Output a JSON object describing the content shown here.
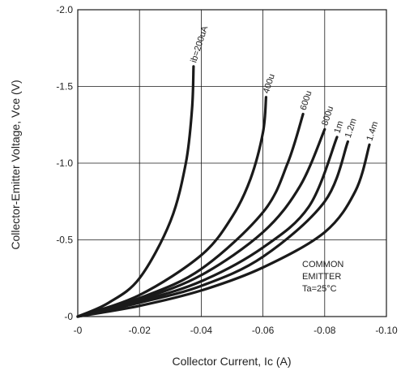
{
  "chart_data": {
    "type": "line",
    "title": "",
    "xlabel": "Collector Current, Ic (A)",
    "ylabel": "Collector-Emitter Voltage, Vce (V)",
    "xlim": [
      0,
      -0.1
    ],
    "ylim": [
      0,
      -2.0
    ],
    "x_tick_labels": [
      "-0",
      "-0.02",
      "-0.04",
      "-0.06",
      "-0.08",
      "-0.10"
    ],
    "y_tick_labels": [
      "-0",
      "-0.5",
      "-1.0",
      "-1.5",
      "-2.0"
    ],
    "grid": true,
    "annotation": [
      "COMMON",
      "EMITTER",
      "Ta=25°C"
    ],
    "colors": {
      "curve": "#1a1a1a",
      "grid": "#1a1a1a"
    },
    "series": [
      {
        "name": "ib=200uA",
        "x": [
          0,
          -0.01,
          -0.02,
          -0.03,
          -0.035,
          -0.037,
          -0.0375
        ],
        "y": [
          0,
          -0.09,
          -0.25,
          -0.62,
          -1.0,
          -1.35,
          -1.63
        ]
      },
      {
        "name": "400u",
        "x": [
          0,
          -0.02,
          -0.04,
          -0.05,
          -0.056,
          -0.06,
          -0.061
        ],
        "y": [
          0,
          -0.14,
          -0.4,
          -0.65,
          -0.9,
          -1.2,
          -1.43
        ]
      },
      {
        "name": "600u",
        "x": [
          0,
          -0.02,
          -0.04,
          -0.06,
          -0.068,
          -0.073
        ],
        "y": [
          0,
          -0.12,
          -0.31,
          -0.68,
          -1.0,
          -1.32
        ]
      },
      {
        "name": "800u",
        "x": [
          0,
          -0.02,
          -0.04,
          -0.06,
          -0.072,
          -0.08
        ],
        "y": [
          0,
          -0.11,
          -0.27,
          -0.55,
          -0.85,
          -1.22
        ]
      },
      {
        "name": "1m",
        "x": [
          0,
          -0.02,
          -0.04,
          -0.06,
          -0.075,
          -0.084
        ],
        "y": [
          0,
          -0.1,
          -0.23,
          -0.45,
          -0.72,
          -1.17
        ]
      },
      {
        "name": "1.2m",
        "x": [
          0,
          -0.02,
          -0.04,
          -0.06,
          -0.08,
          -0.0875
        ],
        "y": [
          0,
          -0.09,
          -0.2,
          -0.39,
          -0.75,
          -1.14
        ]
      },
      {
        "name": "1.4m",
        "x": [
          0,
          -0.02,
          -0.04,
          -0.06,
          -0.08,
          -0.09,
          -0.0945
        ],
        "y": [
          0,
          -0.07,
          -0.17,
          -0.32,
          -0.55,
          -0.82,
          -1.12
        ]
      }
    ]
  }
}
